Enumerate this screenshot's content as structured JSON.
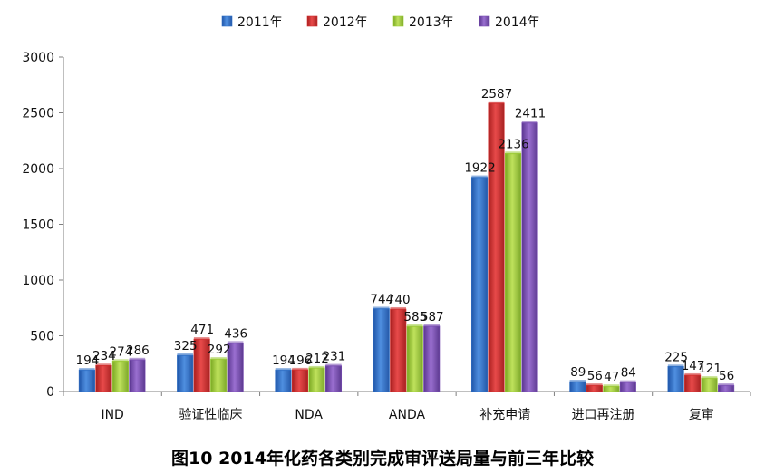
{
  "chart_data": {
    "type": "bar",
    "title": "图10 2014年化药各类别完成审评送局量与前三年比较",
    "xlabel": "",
    "ylabel": "",
    "ylim": [
      0,
      3000
    ],
    "yticks": [
      0,
      500,
      1000,
      1500,
      2000,
      2500,
      3000
    ],
    "grid": false,
    "legend_position": "top",
    "categories": [
      "IND",
      "验证性临床",
      "NDA",
      "ANDA",
      "补充申请",
      "进口再注册",
      "复审"
    ],
    "series": [
      {
        "name": "2011年",
        "color": "#2f6fc5",
        "values": [
          194,
          325,
          194,
          744,
          1922,
          89,
          225
        ]
      },
      {
        "name": "2012年",
        "color": "#d13030",
        "values": [
          234,
          471,
          196,
          740,
          2587,
          56,
          147
        ]
      },
      {
        "name": "2013年",
        "color": "#9bcb36",
        "values": [
          274,
          292,
          212,
          585,
          2136,
          47,
          121
        ]
      },
      {
        "name": "2014年",
        "color": "#7a4fb3",
        "values": [
          286,
          436,
          231,
          587,
          2411,
          84,
          56
        ]
      }
    ]
  }
}
